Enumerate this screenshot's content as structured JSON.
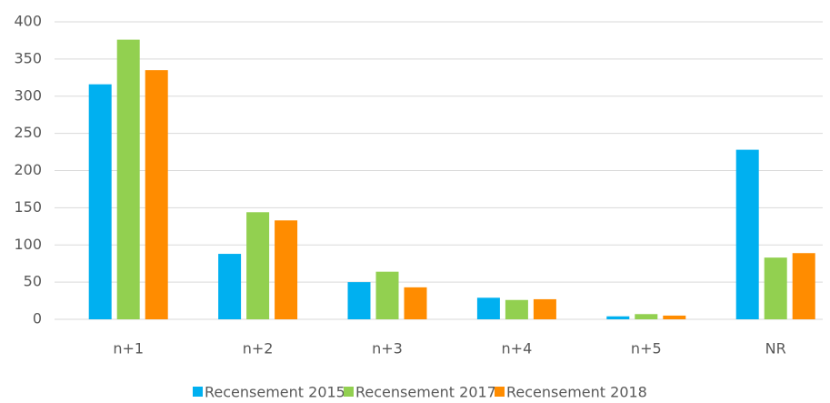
{
  "chart_data": {
    "type": "bar",
    "categories": [
      "n+1",
      "n+2",
      "n+3",
      "n+4",
      "n+5",
      "NR"
    ],
    "series": [
      {
        "name": "Recensement 2015",
        "color": "#00b0f0",
        "values": [
          316,
          88,
          50,
          29,
          4,
          228
        ]
      },
      {
        "name": "Recensement 2017",
        "color": "#92d050",
        "values": [
          376,
          144,
          64,
          26,
          7,
          83
        ]
      },
      {
        "name": "Recensement 2018",
        "color": "#ff8c00",
        "values": [
          335,
          133,
          43,
          27,
          5,
          89
        ]
      }
    ],
    "ylim": [
      0,
      400
    ],
    "yticks": [
      0,
      50,
      100,
      150,
      200,
      250,
      300,
      350,
      400
    ],
    "grid": true,
    "legend": "bottom"
  }
}
